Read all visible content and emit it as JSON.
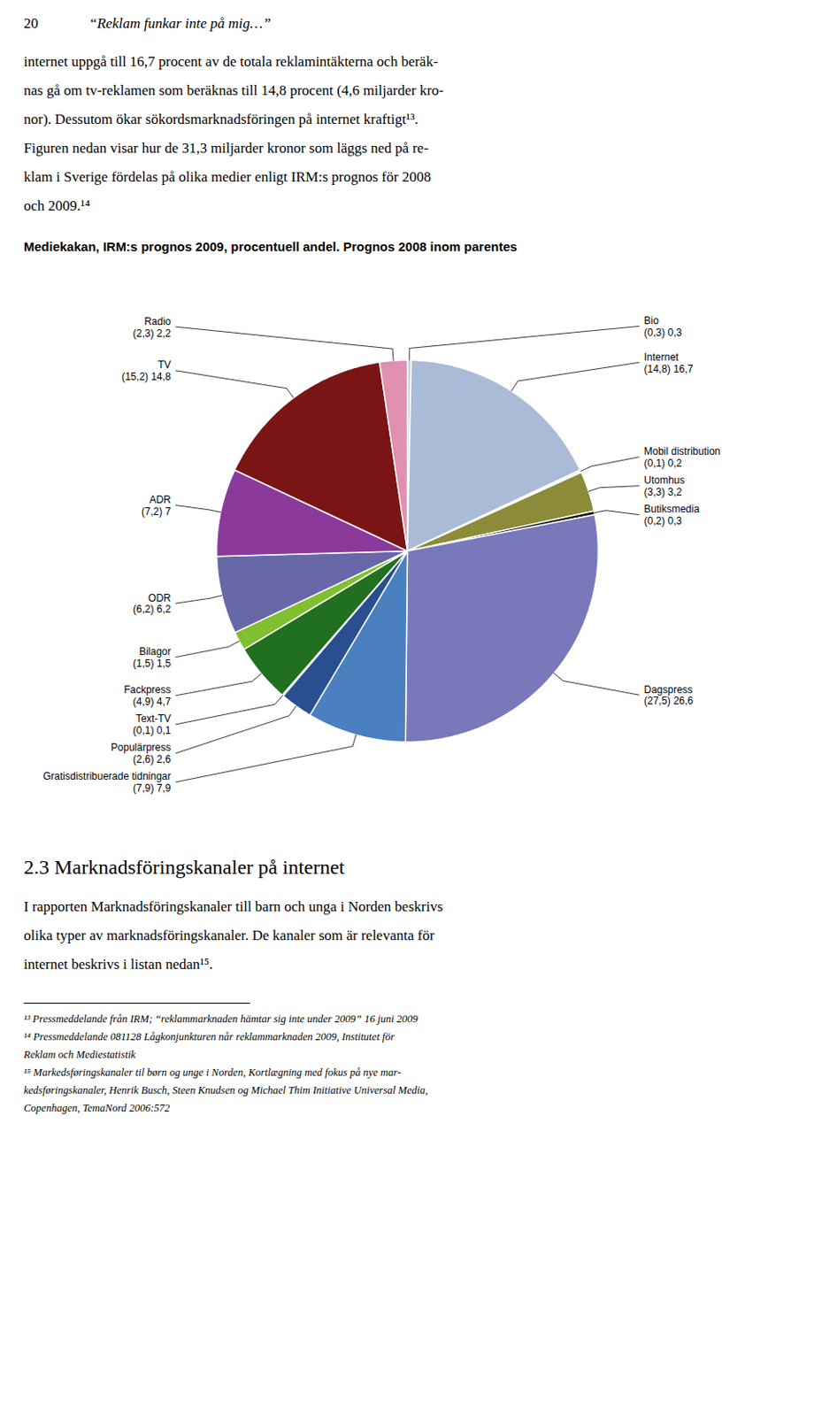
{
  "page": {
    "header": [
      "20",
      "“Reklam funkar inte på mig…”"
    ],
    "body": [
      "internet uppgå till 16,7 procent av de totala reklamintäkterna och beräk-",
      "nas gå om tv-reklamen som beräknas till 14,8 procent (4,6 miljarder kro-",
      "nor). Dessutom ökar sökordsmarknadsföringen på internet kraftigt¹³.",
      "Figuren nedan visar hur de 31,3 miljarder kronor som läggs ned på re-",
      "klam i Sverige fördelas på olika medier enligt IRM:s prognos för 2008",
      "och 2009.¹⁴"
    ],
    "heading": "2.3 Marknadsföringskanaler på internet",
    "footer_body": [
      "I rapporten Marknadsföringskanaler till barn och unga i Norden beskrivs",
      "olika typer av marknadsföringskanaler. De kanaler som är relevanta för",
      "internet beskrivs i listan nedan¹⁵."
    ],
    "footnotes": [
      "¹³ Pressmeddelande från IRM; “reklammarknaden hämtar sig inte under 2009” 16 juni 2009",
      "¹⁴ Pressmeddelande 081128 Lågkonjunkturen når reklammarknaden 2009, Institutet för",
      "Reklam och Mediestatistik",
      "¹⁵ Markedsføringskanaler til børn og unge i Norden, Kortlægning med fokus på nye mar-",
      "kedsføringskanaler, Henrik Busch, Steen Knudsen og Michael Thim Initiative Universal Media,",
      "Copenhagen, TemaNord 2006:572"
    ]
  },
  "chart_data": {
    "type": "pie",
    "title": "Mediekakan, IRM:s prognos 2009, procentuell andel. Prognos 2008 inom parentes",
    "categories": [
      "Bio",
      "Internet",
      "Mobil distribution",
      "Utomhus",
      "Butiksmedia",
      "Dagspress",
      "Gratisdistribuerade tidningar",
      "Populärpress",
      "Text-TV",
      "Fackpress",
      "Bilagor",
      "ODR",
      "ADR",
      "TV",
      "Radio"
    ],
    "values": [
      0.3,
      16.7,
      0.2,
      3.2,
      0.3,
      26.6,
      7.9,
      2.6,
      0.1,
      4.7,
      1.5,
      6.2,
      7.0,
      14.8,
      2.2
    ],
    "value_labels": [
      "(0,3) 0,3",
      "(14,8) 16,7",
      "(0,1) 0,2",
      "(3,3) 3,2",
      "(0,2) 0,3",
      "(27,5) 26,6",
      "(7,9) 7,9",
      "(2,6) 2,6",
      "(0,1) 0,1",
      "(4,9) 4,7",
      "(1,5) 1,5",
      "(6,2) 6,2",
      "(7,2) 7",
      "(15,2) 14,8",
      "(2,3) 2,2"
    ],
    "colors": [
      "#D0D0D0",
      "#AABBD8",
      "#F0F0F0",
      "#8B8B3A",
      "#1A1A1A",
      "#7878BB",
      "#4A80C0",
      "#2A4F90",
      "#1A2E60",
      "#207020",
      "#80C030",
      "#6868A8",
      "#8B3A9B",
      "#7B1515",
      "#E090B0"
    ],
    "data_labels": true
  }
}
